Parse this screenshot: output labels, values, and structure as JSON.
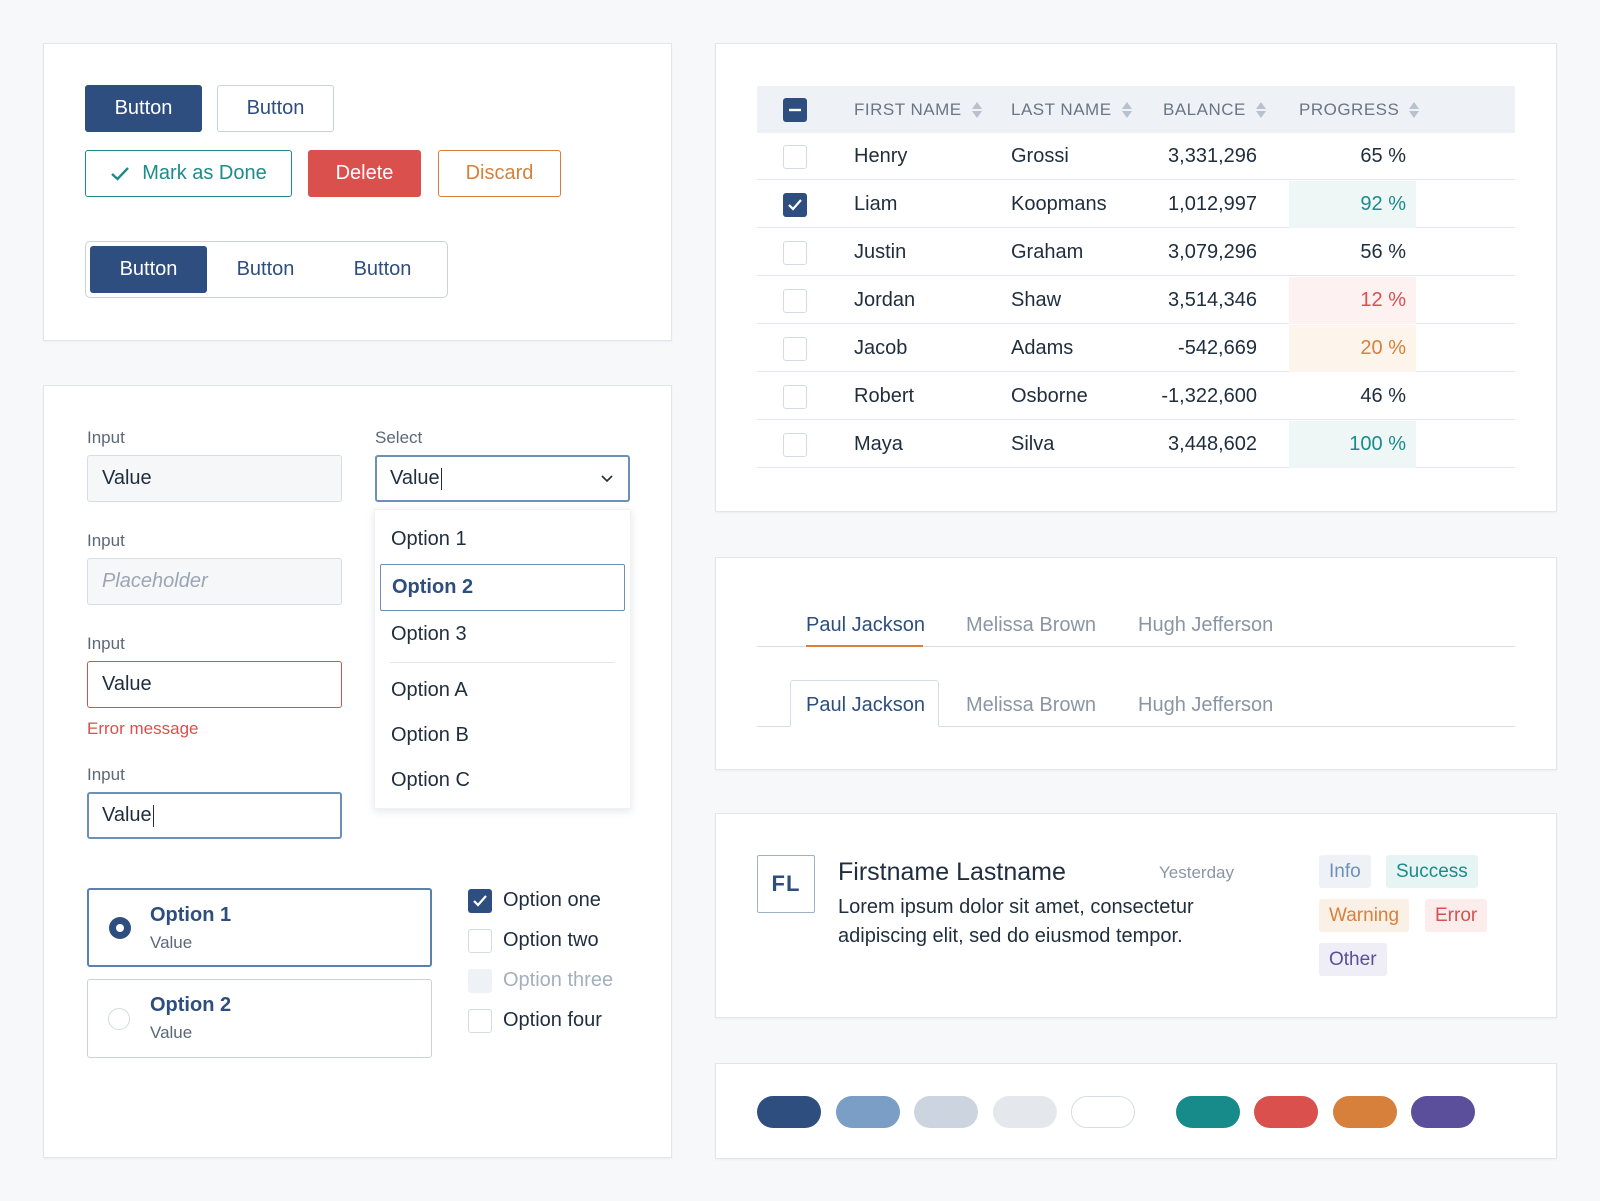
{
  "buttons": {
    "primary": "Button",
    "secondary": "Button",
    "mark_done": "Mark as Done",
    "delete": "Delete",
    "discard": "Discard",
    "segmented": [
      "Button",
      "Button",
      "Button"
    ]
  },
  "form": {
    "input1": {
      "label": "Input",
      "value": "Value"
    },
    "input2": {
      "label": "Input",
      "placeholder": "Placeholder"
    },
    "input3": {
      "label": "Input",
      "value": "Value",
      "error": "Error message"
    },
    "input4": {
      "label": "Input",
      "value": "Value"
    },
    "select": {
      "label": "Select",
      "value": "Value",
      "options": [
        "Option 1",
        "Option 2",
        "Option 3",
        "Option A",
        "Option B",
        "Option C"
      ],
      "selected": "Option 2"
    },
    "radio_cards": [
      {
        "title": "Option 1",
        "value": "Value",
        "checked": true
      },
      {
        "title": "Option 2",
        "value": "Value",
        "checked": false
      }
    ],
    "checkboxes": [
      {
        "label": "Option one",
        "state": "checked"
      },
      {
        "label": "Option two",
        "state": "unchecked"
      },
      {
        "label": "Option three",
        "state": "disabled"
      },
      {
        "label": "Option four",
        "state": "unchecked"
      }
    ]
  },
  "table": {
    "headers": [
      "FIRST NAME",
      "LAST NAME",
      "BALANCE",
      "PROGRESS"
    ],
    "rows": [
      {
        "first": "Henry",
        "last": "Grossi",
        "balance": "3,331,296",
        "progress": "65 %",
        "checked": false,
        "status": "none"
      },
      {
        "first": "Liam",
        "last": "Koopmans",
        "balance": "1,012,997",
        "progress": "92 %",
        "checked": true,
        "status": "success"
      },
      {
        "first": "Justin",
        "last": "Graham",
        "balance": "3,079,296",
        "progress": "56 %",
        "checked": false,
        "status": "none"
      },
      {
        "first": "Jordan",
        "last": "Shaw",
        "balance": "3,514,346",
        "progress": "12 %",
        "checked": false,
        "status": "error"
      },
      {
        "first": "Jacob",
        "last": "Adams",
        "balance": "-542,669",
        "progress": "20 %",
        "checked": false,
        "status": "warning"
      },
      {
        "first": "Robert",
        "last": "Osborne",
        "balance": "-1,322,600",
        "progress": "46 %",
        "checked": false,
        "status": "none"
      },
      {
        "first": "Maya",
        "last": "Silva",
        "balance": "3,448,602",
        "progress": "100 %",
        "checked": false,
        "status": "success"
      }
    ]
  },
  "tabs": {
    "underline": [
      "Paul Jackson",
      "Melissa Brown",
      "Hugh Jefferson"
    ],
    "boxed": [
      "Paul Jackson",
      "Melissa Brown",
      "Hugh Jefferson"
    ]
  },
  "item": {
    "initials": "FL",
    "name": "Firstname Lastname",
    "time": "Yesterday",
    "text_line1": "Lorem ipsum dolor sit amet, consectetur",
    "text_line2": "adipiscing elit, sed do eiusmod tempor.",
    "badges": [
      {
        "label": "Info",
        "fg": "#6d8fb8",
        "bg": "#eef2f7"
      },
      {
        "label": "Success",
        "fg": "#1b8b8b",
        "bg": "#e6f4f3"
      },
      {
        "label": "Warning",
        "fg": "#d7803c",
        "bg": "#fbf0e6"
      },
      {
        "label": "Error",
        "fg": "#d9504c",
        "bg": "#fcecec"
      },
      {
        "label": "Other",
        "fg": "#5b4e9a",
        "bg": "#efedf6"
      }
    ]
  },
  "colors": [
    "#2d4e7e",
    "#7a9ec6",
    "#ccd4e0",
    "#e4e8ed",
    "#ffffff",
    "#178a8a",
    "#d9504c",
    "#d7803c",
    "#5b4e9a"
  ]
}
